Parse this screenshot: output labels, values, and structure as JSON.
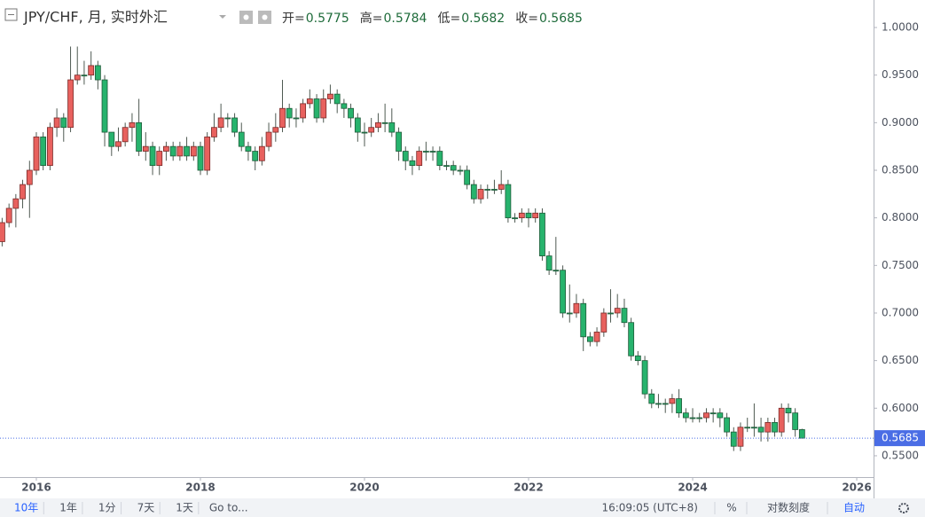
{
  "chart_data": {
    "type": "candlestick",
    "title": "JPY/CHF, 月, 实时外汇",
    "ohlc_labels": [
      "开=",
      "高=",
      "低=",
      "收="
    ],
    "up_color": "#e8615e",
    "down_color": "#27b36d",
    "xlim": [
      2015.557,
      2026.205
    ],
    "ylim": [
      0.5276,
      1.0289
    ],
    "xticks": [
      2016,
      2018,
      2020,
      2022,
      2024,
      2026
    ],
    "yticks": [
      {
        "value": 0.55,
        "label": "0.5500"
      },
      {
        "value": 0.6,
        "label": "0.6000"
      },
      {
        "value": 0.65,
        "label": "0.6500"
      },
      {
        "value": 0.7,
        "label": "0.7000"
      },
      {
        "value": 0.75,
        "label": "0.7500"
      },
      {
        "value": 0.8,
        "label": "0.8000"
      },
      {
        "value": 0.85,
        "label": "0.8500"
      },
      {
        "value": 0.9,
        "label": "0.9000"
      },
      {
        "value": 0.95,
        "label": "0.9500"
      },
      {
        "value": 1,
        "label": "1.0000"
      }
    ],
    "x": [
      2015.583,
      2015.667,
      2015.75,
      2015.833,
      2015.917,
      2016,
      2016.083,
      2016.167,
      2016.25,
      2016.333,
      2016.417,
      2016.5,
      2016.583,
      2016.667,
      2016.75,
      2016.833,
      2016.917,
      2017,
      2017.083,
      2017.167,
      2017.25,
      2017.333,
      2017.417,
      2017.5,
      2017.583,
      2017.667,
      2017.75,
      2017.833,
      2017.917,
      2018,
      2018.083,
      2018.167,
      2018.25,
      2018.333,
      2018.417,
      2018.5,
      2018.583,
      2018.667,
      2018.75,
      2018.833,
      2018.917,
      2019,
      2019.083,
      2019.167,
      2019.25,
      2019.333,
      2019.417,
      2019.5,
      2019.583,
      2019.667,
      2019.75,
      2019.833,
      2019.917,
      2020,
      2020.083,
      2020.167,
      2020.25,
      2020.333,
      2020.417,
      2020.5,
      2020.583,
      2020.667,
      2020.75,
      2020.833,
      2020.917,
      2021,
      2021.083,
      2021.167,
      2021.25,
      2021.333,
      2021.417,
      2021.5,
      2021.583,
      2021.667,
      2021.75,
      2021.833,
      2021.917,
      2022,
      2022.083,
      2022.167,
      2022.25,
      2022.333,
      2022.417,
      2022.5,
      2022.583,
      2022.667,
      2022.75,
      2022.833,
      2022.917,
      2023,
      2023.083,
      2023.167,
      2023.25,
      2023.333,
      2023.417,
      2023.5,
      2023.583,
      2023.667,
      2023.75,
      2023.833,
      2023.917,
      2024,
      2024.083,
      2024.167,
      2024.25,
      2024.333,
      2024.417,
      2024.5,
      2024.583,
      2024.667,
      2024.75,
      2024.833,
      2024.917,
      2025,
      2025.083,
      2025.167,
      2025.25,
      2025.333
    ],
    "open": [
      0.775,
      0.795,
      0.81,
      0.82,
      0.835,
      0.85,
      0.885,
      0.855,
      0.895,
      0.905,
      0.895,
      0.945,
      0.95,
      0.95,
      0.96,
      0.945,
      0.89,
      0.875,
      0.88,
      0.895,
      0.9,
      0.87,
      0.875,
      0.855,
      0.87,
      0.875,
      0.865,
      0.875,
      0.865,
      0.875,
      0.85,
      0.885,
      0.895,
      0.905,
      0.905,
      0.89,
      0.875,
      0.87,
      0.86,
      0.875,
      0.89,
      0.895,
      0.915,
      0.905,
      0.905,
      0.92,
      0.925,
      0.905,
      0.925,
      0.93,
      0.92,
      0.915,
      0.905,
      0.89,
      0.89,
      0.895,
      0.9,
      0.9,
      0.89,
      0.87,
      0.86,
      0.855,
      0.87,
      0.87,
      0.87,
      0.855,
      0.855,
      0.85,
      0.85,
      0.835,
      0.82,
      0.83,
      0.83,
      0.83,
      0.835,
      0.8,
      0.8,
      0.805,
      0.8,
      0.805,
      0.76,
      0.745,
      0.745,
      0.7,
      0.7,
      0.71,
      0.675,
      0.67,
      0.68,
      0.7,
      0.7,
      0.705,
      0.69,
      0.655,
      0.65,
      0.615,
      0.605,
      0.605,
      0.605,
      0.61,
      0.595,
      0.59,
      0.59,
      0.59,
      0.595,
      0.595,
      0.59,
      0.575,
      0.56,
      0.58,
      0.58,
      0.58,
      0.575,
      0.585,
      0.575,
      0.6,
      0.595,
      0.5775
    ],
    "high": [
      0.8,
      0.815,
      0.825,
      0.84,
      0.86,
      0.89,
      0.89,
      0.9,
      0.915,
      0.91,
      0.98,
      0.98,
      0.965,
      0.975,
      0.965,
      0.95,
      0.885,
      0.895,
      0.9,
      0.91,
      0.925,
      0.89,
      0.88,
      0.875,
      0.88,
      0.88,
      0.88,
      0.885,
      0.88,
      0.88,
      0.89,
      0.91,
      0.92,
      0.91,
      0.91,
      0.9,
      0.88,
      0.875,
      0.885,
      0.9,
      0.91,
      0.945,
      0.92,
      0.915,
      0.925,
      0.935,
      0.93,
      0.935,
      0.94,
      0.935,
      0.925,
      0.92,
      0.91,
      0.9,
      0.905,
      0.91,
      0.92,
      0.915,
      0.895,
      0.875,
      0.865,
      0.875,
      0.88,
      0.875,
      0.875,
      0.86,
      0.86,
      0.855,
      0.855,
      0.84,
      0.835,
      0.835,
      0.84,
      0.85,
      0.84,
      0.805,
      0.81,
      0.81,
      0.81,
      0.81,
      0.765,
      0.78,
      0.75,
      0.73,
      0.72,
      0.715,
      0.68,
      0.685,
      0.705,
      0.725,
      0.72,
      0.715,
      0.695,
      0.66,
      0.655,
      0.62,
      0.615,
      0.61,
      0.615,
      0.62,
      0.6,
      0.6,
      0.595,
      0.6,
      0.6,
      0.6,
      0.595,
      0.58,
      0.585,
      0.59,
      0.605,
      0.59,
      0.59,
      0.59,
      0.605,
      0.605,
      0.6,
      0.5784
    ],
    "low": [
      0.77,
      0.79,
      0.79,
      0.81,
      0.8,
      0.845,
      0.85,
      0.85,
      0.885,
      0.88,
      0.89,
      0.94,
      0.94,
      0.945,
      0.935,
      0.875,
      0.865,
      0.87,
      0.875,
      0.88,
      0.865,
      0.86,
      0.845,
      0.845,
      0.86,
      0.86,
      0.86,
      0.86,
      0.86,
      0.845,
      0.845,
      0.88,
      0.89,
      0.895,
      0.885,
      0.87,
      0.86,
      0.85,
      0.855,
      0.87,
      0.88,
      0.89,
      0.895,
      0.895,
      0.9,
      0.915,
      0.9,
      0.9,
      0.92,
      0.91,
      0.905,
      0.895,
      0.88,
      0.875,
      0.885,
      0.89,
      0.89,
      0.885,
      0.86,
      0.85,
      0.845,
      0.85,
      0.86,
      0.86,
      0.85,
      0.85,
      0.845,
      0.845,
      0.83,
      0.815,
      0.815,
      0.82,
      0.825,
      0.825,
      0.795,
      0.795,
      0.795,
      0.79,
      0.795,
      0.755,
      0.74,
      0.74,
      0.695,
      0.69,
      0.695,
      0.66,
      0.665,
      0.665,
      0.675,
      0.69,
      0.695,
      0.685,
      0.65,
      0.645,
      0.61,
      0.6,
      0.6,
      0.595,
      0.595,
      0.59,
      0.585,
      0.585,
      0.585,
      0.585,
      0.585,
      0.58,
      0.57,
      0.555,
      0.555,
      0.575,
      0.57,
      0.565,
      0.565,
      0.57,
      0.57,
      0.585,
      0.57,
      0.5682
    ],
    "close": [
      0.795,
      0.81,
      0.82,
      0.835,
      0.85,
      0.885,
      0.855,
      0.895,
      0.905,
      0.895,
      0.945,
      0.95,
      0.95,
      0.96,
      0.945,
      0.89,
      0.875,
      0.88,
      0.895,
      0.9,
      0.87,
      0.875,
      0.855,
      0.87,
      0.875,
      0.865,
      0.875,
      0.865,
      0.875,
      0.85,
      0.885,
      0.895,
      0.905,
      0.905,
      0.89,
      0.875,
      0.87,
      0.86,
      0.875,
      0.89,
      0.895,
      0.915,
      0.905,
      0.905,
      0.92,
      0.925,
      0.905,
      0.925,
      0.93,
      0.92,
      0.915,
      0.905,
      0.89,
      0.89,
      0.895,
      0.9,
      0.9,
      0.89,
      0.87,
      0.86,
      0.855,
      0.87,
      0.87,
      0.87,
      0.855,
      0.855,
      0.85,
      0.85,
      0.835,
      0.82,
      0.83,
      0.83,
      0.83,
      0.835,
      0.8,
      0.8,
      0.805,
      0.8,
      0.805,
      0.76,
      0.745,
      0.745,
      0.7,
      0.7,
      0.71,
      0.675,
      0.67,
      0.68,
      0.7,
      0.7,
      0.705,
      0.69,
      0.655,
      0.65,
      0.615,
      0.605,
      0.605,
      0.605,
      0.61,
      0.595,
      0.59,
      0.59,
      0.59,
      0.595,
      0.595,
      0.59,
      0.575,
      0.56,
      0.58,
      0.58,
      0.58,
      0.575,
      0.585,
      0.575,
      0.6,
      0.595,
      0.5775,
      0.5685
    ]
  },
  "toolbar": {
    "ranges": [
      "10年",
      "1年",
      "1分",
      "7天",
      "1天"
    ],
    "goto": "Go to...",
    "time": "16:09:05 (UTC+8)",
    "percent": "%",
    "log": "对数刻度",
    "auto": "自动"
  }
}
